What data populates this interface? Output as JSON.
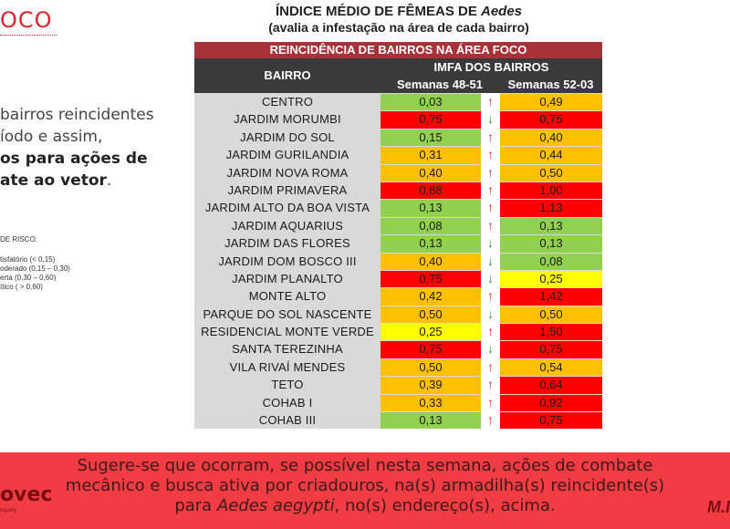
{
  "header": {
    "logo_fragment": "OCO",
    "title_prefix": "ÍNDICE MÉDIO DE FÊMEAS DE ",
    "title_italic": "Aedes",
    "subtitle": "(avalia a infestação na área de cada bairro)"
  },
  "left_text": {
    "line1": "bairros reincidentes",
    "line2": "íodo e assim,",
    "line3": "os para ações de",
    "line4_bold": "ate ao vetor",
    "line4_end": "."
  },
  "risk_legend": {
    "title": "DE RISCO:",
    "items": [
      "tisfatório (< 0,15)",
      "oderado (0,15 – 0,30)",
      "erta (0,30 – 0,60)",
      "ítico ( > 0,60)"
    ]
  },
  "table": {
    "banner": "REINCIDÊNCIA DE BAIRROS NA ÁREA FOCO",
    "col_bairro": "BAIRRO",
    "col_imfa": "IMFA DOS BAIRROS",
    "col_s1": "Semanas 48-51",
    "col_s2": "Semanas 52-03",
    "colors": {
      "green": "#92d050",
      "orange": "#ffc000",
      "red": "#ff0000",
      "yellow": "#ffff00",
      "row_bg": "#d9d9d9"
    },
    "rows": [
      {
        "name": "CENTRO",
        "v1": "0,03",
        "c1": "green",
        "trend": "up",
        "v2": "0,49",
        "c2": "orange"
      },
      {
        "name": "JARDIM MORUMBI",
        "v1": "0,75",
        "c1": "red",
        "trend": "down",
        "v2": "0,75",
        "c2": "red"
      },
      {
        "name": "JARDIM DO SOL",
        "v1": "0,15",
        "c1": "green",
        "trend": "up",
        "v2": "0,40",
        "c2": "orange"
      },
      {
        "name": "JARDIM GURILANDIA",
        "v1": "0,31",
        "c1": "orange",
        "trend": "up",
        "v2": "0,44",
        "c2": "orange"
      },
      {
        "name": "JARDIM NOVA ROMA",
        "v1": "0,40",
        "c1": "orange",
        "trend": "up",
        "v2": "0,50",
        "c2": "orange"
      },
      {
        "name": "JARDIM PRIMAVERA",
        "v1": "0,88",
        "c1": "red",
        "trend": "up",
        "v2": "1,00",
        "c2": "red"
      },
      {
        "name": "JARDIM ALTO DA BOA VISTA",
        "v1": "0,13",
        "c1": "green",
        "trend": "up",
        "v2": "1,13",
        "c2": "red"
      },
      {
        "name": "JARDIM AQUARIUS",
        "v1": "0,08",
        "c1": "green",
        "trend": "up",
        "v2": "0,13",
        "c2": "green"
      },
      {
        "name": "JARDIM DAS FLORES",
        "v1": "0,13",
        "c1": "green",
        "trend": "down",
        "v2": "0,13",
        "c2": "green"
      },
      {
        "name": "JARDIM DOM BOSCO III",
        "v1": "0,40",
        "c1": "orange",
        "trend": "down",
        "v2": "0,08",
        "c2": "green"
      },
      {
        "name": "JARDIM PLANALTO",
        "v1": "0,75",
        "c1": "red",
        "trend": "down",
        "v2": "0,25",
        "c2": "yellow"
      },
      {
        "name": "MONTE ALTO",
        "v1": "0,42",
        "c1": "orange",
        "trend": "up",
        "v2": "1,42",
        "c2": "red"
      },
      {
        "name": "PARQUE DO SOL NASCENTE",
        "v1": "0,50",
        "c1": "orange",
        "trend": "down",
        "v2": "0,50",
        "c2": "orange"
      },
      {
        "name": "RESIDENCIAL MONTE VERDE",
        "v1": "0,25",
        "c1": "yellow",
        "trend": "up",
        "v2": "1,50",
        "c2": "red"
      },
      {
        "name": "SANTA TEREZINHA",
        "v1": "0,75",
        "c1": "red",
        "trend": "down",
        "v2": "0,75",
        "c2": "red"
      },
      {
        "name": "VILA RIVAÍ MENDES",
        "v1": "0,50",
        "c1": "orange",
        "trend": "up",
        "v2": "0,54",
        "c2": "orange"
      },
      {
        "name": "TETO",
        "v1": "0,39",
        "c1": "orange",
        "trend": "up",
        "v2": "0,64",
        "c2": "red"
      },
      {
        "name": "COHAB I",
        "v1": "0,33",
        "c1": "orange",
        "trend": "up",
        "v2": "0,92",
        "c2": "red"
      },
      {
        "name": "COHAB III",
        "v1": "0,13",
        "c1": "green",
        "trend": "up",
        "v2": "0,75",
        "c2": "red"
      }
    ]
  },
  "footer": {
    "line1": "Sugere-se que ocorram, se possível nesta semana, ações de combate",
    "line2": "mecânico e busca ativa por criadouros, na(s) armadilha(s) reincidente(s)",
    "line3_pre": "para ",
    "line3_italic": "Aedes aegypti",
    "line3_post": ", no(s) endereço(s), acima.",
    "logo_left": "ovec",
    "logo_left_sub": "mpany",
    "logo_right": "M.I"
  },
  "icons": {
    "up": "arrow-up-icon",
    "down": "arrow-down-icon"
  }
}
